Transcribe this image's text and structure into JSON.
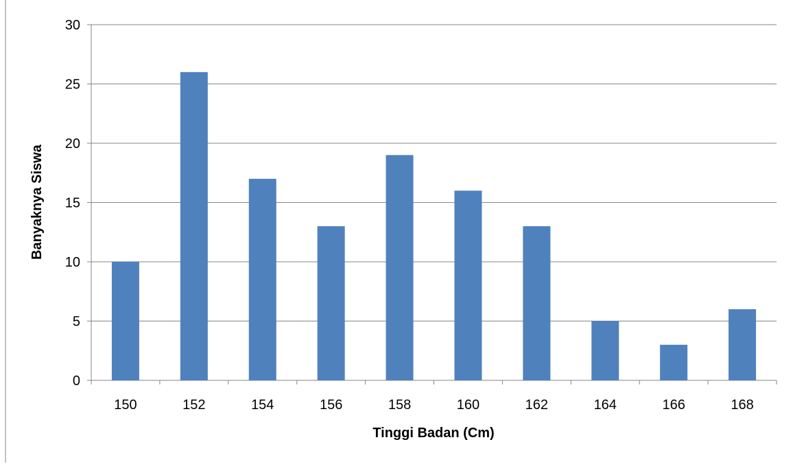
{
  "chart_data": {
    "type": "bar",
    "title": "",
    "xlabel": "Tinggi Badan (Cm)",
    "ylabel": "Banyaknya Siswa",
    "categories": [
      "150",
      "152",
      "154",
      "156",
      "158",
      "160",
      "162",
      "164",
      "166",
      "168"
    ],
    "series": [
      {
        "values": [
          10,
          26,
          17,
          13,
          19,
          16,
          13,
          5,
          3,
          6
        ]
      }
    ],
    "ylim": [
      0,
      30
    ],
    "yticks": [
      "0",
      "5",
      "10",
      "15",
      "20",
      "25",
      "30"
    ],
    "grid": true,
    "legend": "none",
    "colors": {
      "bar": "#4f81bd",
      "grid": "#868686",
      "axis": "#868686"
    }
  }
}
